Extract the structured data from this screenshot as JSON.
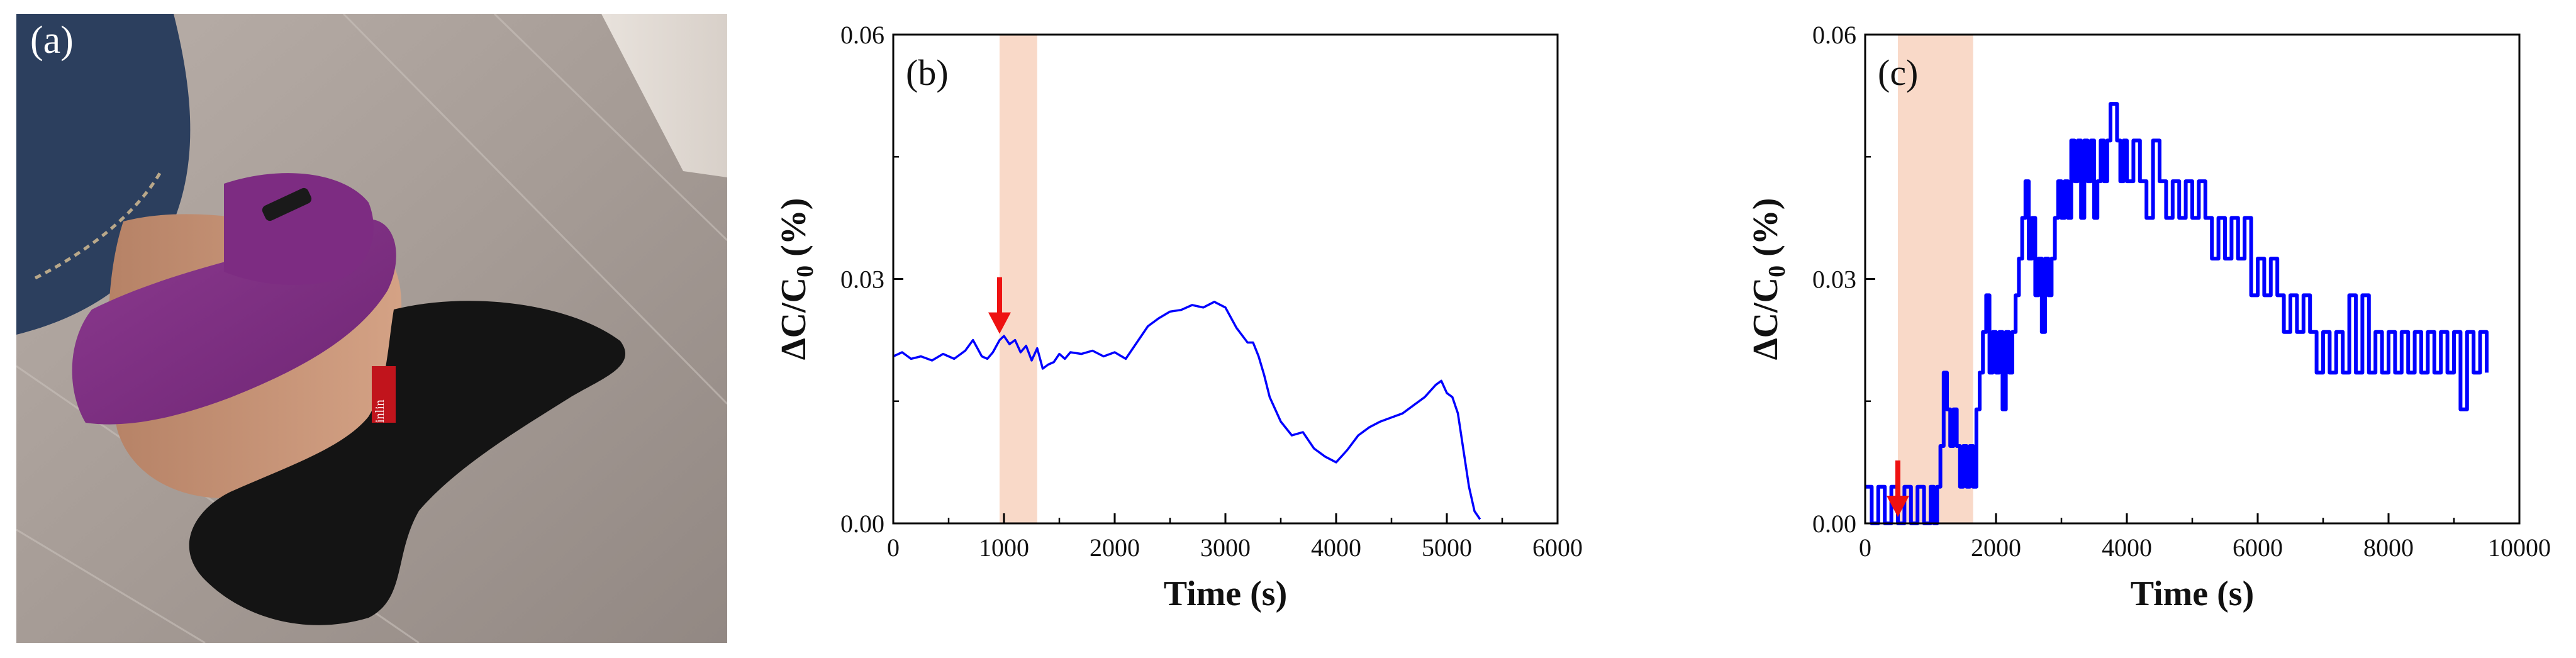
{
  "photo_label": "(a)",
  "photo_text": "inlin",
  "colors": {
    "line": "#0000ff",
    "highlight": "#f9d9c8",
    "arrow": "#ee1111",
    "highlight_line": "#8a78e6"
  },
  "chart_data": [
    {
      "type": "line",
      "panel_label": "(b)",
      "xlabel": "Time (s)",
      "ylabel": "ΔC/C0 (%)",
      "xlim": [
        0,
        6000
      ],
      "ylim": [
        0,
        0.06
      ],
      "xticks": [
        0,
        1000,
        2000,
        3000,
        4000,
        5000,
        6000
      ],
      "yticks": [
        0.0,
        0.03,
        0.06
      ],
      "ytick_labels": [
        "0.00",
        "0.03",
        "0.06"
      ],
      "highlight_band": [
        960,
        1300
      ],
      "arrow_x": 960,
      "series": [
        {
          "x": [
            0,
            80,
            160,
            250,
            350,
            450,
            550,
            650,
            720,
            800,
            850,
            900,
            960,
            1000,
            1050,
            1100,
            1150,
            1200,
            1250,
            1300,
            1350,
            1400,
            1450,
            1500,
            1550,
            1600,
            1700,
            1800,
            1900,
            2000,
            2100,
            2200,
            2300,
            2400,
            2500,
            2600,
            2700,
            2800,
            2900,
            3000,
            3100,
            3200,
            3250,
            3300,
            3350,
            3400,
            3500,
            3600,
            3700,
            3800,
            3900,
            4000,
            4100,
            4200,
            4300,
            4400,
            4500,
            4600,
            4700,
            4800,
            4900,
            4950,
            5000,
            5050,
            5100,
            5150,
            5200,
            5250,
            5300
          ],
          "y": [
            0.0205,
            0.021,
            0.0202,
            0.0205,
            0.02,
            0.0208,
            0.0202,
            0.0212,
            0.0225,
            0.0205,
            0.0202,
            0.021,
            0.0225,
            0.023,
            0.022,
            0.0225,
            0.021,
            0.0218,
            0.02,
            0.0215,
            0.019,
            0.0195,
            0.0198,
            0.0208,
            0.0202,
            0.021,
            0.0208,
            0.0212,
            0.0205,
            0.021,
            0.0202,
            0.0222,
            0.0242,
            0.0252,
            0.026,
            0.0262,
            0.0268,
            0.0265,
            0.0272,
            0.0265,
            0.024,
            0.0222,
            0.0222,
            0.0205,
            0.0182,
            0.0155,
            0.0125,
            0.0108,
            0.0112,
            0.0092,
            0.0082,
            0.0075,
            0.009,
            0.0108,
            0.0118,
            0.0125,
            0.013,
            0.0135,
            0.0145,
            0.0155,
            0.017,
            0.0175,
            0.016,
            0.0155,
            0.0135,
            0.009,
            0.0045,
            0.0015,
            0.0005
          ]
        }
      ]
    },
    {
      "type": "line",
      "panel_label": "(c)",
      "xlabel": "Time (s)",
      "ylabel": "ΔC/C0 (%)",
      "xlim": [
        0,
        10000
      ],
      "ylim": [
        0,
        0.06
      ],
      "xticks": [
        0,
        2000,
        4000,
        6000,
        8000,
        10000
      ],
      "yticks": [
        0.0,
        0.03,
        0.06
      ],
      "ytick_labels": [
        "0.00",
        "0.03",
        "0.06"
      ],
      "highlight_band": [
        500,
        1650
      ],
      "arrow_x": 500,
      "series": [
        {
          "x": [
            0,
            100,
            200,
            300,
            400,
            500,
            600,
            700,
            800,
            900,
            1000,
            1050,
            1100,
            1150,
            1200,
            1250,
            1300,
            1350,
            1400,
            1450,
            1500,
            1550,
            1600,
            1650,
            1700,
            1750,
            1800,
            1850,
            1900,
            1950,
            2000,
            2050,
            2100,
            2150,
            2200,
            2250,
            2300,
            2350,
            2400,
            2450,
            2500,
            2550,
            2600,
            2650,
            2700,
            2750,
            2800,
            2850,
            2900,
            2950,
            3000,
            3050,
            3100,
            3150,
            3200,
            3250,
            3300,
            3350,
            3400,
            3450,
            3500,
            3550,
            3600,
            3650,
            3700,
            3750,
            3800,
            3850,
            3900,
            3950,
            4000,
            4100,
            4200,
            4300,
            4400,
            4500,
            4600,
            4700,
            4800,
            4900,
            5000,
            5100,
            5200,
            5300,
            5400,
            5500,
            5600,
            5700,
            5800,
            5900,
            6000,
            6100,
            6200,
            6300,
            6400,
            6500,
            6600,
            6700,
            6800,
            6900,
            7000,
            7100,
            7200,
            7300,
            7400,
            7500,
            7600,
            7700,
            7800,
            7900,
            8000,
            8100,
            8200,
            8300,
            8400,
            8500,
            8600,
            8700,
            8800,
            8900,
            9000,
            9100,
            9200,
            9300,
            9400,
            9500
          ],
          "y": [
            0.0045,
            0.0,
            0.0045,
            0.0,
            0.0045,
            0.0,
            0.0045,
            0.0,
            0.0045,
            0.0,
            0.0045,
            0.0,
            0.0045,
            0.0095,
            0.0185,
            0.014,
            0.0095,
            0.014,
            0.0095,
            0.0045,
            0.0095,
            0.0045,
            0.0095,
            0.0045,
            0.014,
            0.0185,
            0.0235,
            0.028,
            0.0185,
            0.0235,
            0.0185,
            0.0235,
            0.014,
            0.0235,
            0.0185,
            0.0235,
            0.028,
            0.0325,
            0.0375,
            0.042,
            0.0325,
            0.0375,
            0.028,
            0.0325,
            0.0235,
            0.0325,
            0.028,
            0.0325,
            0.0375,
            0.042,
            0.0375,
            0.042,
            0.0375,
            0.047,
            0.042,
            0.047,
            0.0375,
            0.047,
            0.042,
            0.047,
            0.0375,
            0.042,
            0.047,
            0.042,
            0.047,
            0.0515,
            0.0515,
            0.047,
            0.042,
            0.047,
            0.042,
            0.047,
            0.042,
            0.0375,
            0.047,
            0.042,
            0.0375,
            0.042,
            0.0375,
            0.042,
            0.0375,
            0.042,
            0.0375,
            0.0325,
            0.0375,
            0.0325,
            0.0375,
            0.0325,
            0.0375,
            0.028,
            0.0325,
            0.028,
            0.0325,
            0.028,
            0.0235,
            0.028,
            0.0235,
            0.028,
            0.0235,
            0.0185,
            0.0235,
            0.0185,
            0.0235,
            0.0185,
            0.028,
            0.0185,
            0.028,
            0.0185,
            0.0235,
            0.0185,
            0.0235,
            0.0185,
            0.0235,
            0.0185,
            0.0235,
            0.0185,
            0.0235,
            0.0185,
            0.0235,
            0.0185,
            0.0235,
            0.014,
            0.0235,
            0.0185,
            0.0235,
            0.0185
          ]
        }
      ]
    }
  ]
}
